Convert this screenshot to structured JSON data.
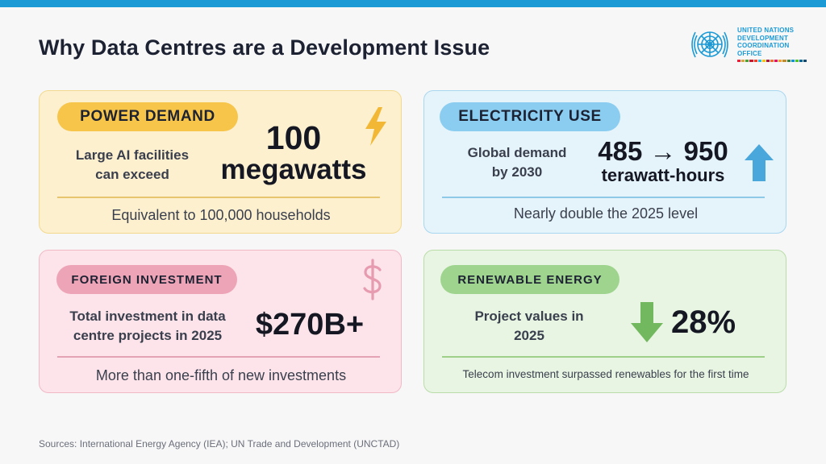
{
  "title": "Why Data Centres are a Development Issue",
  "logo": {
    "lines": [
      "UNITED NATIONS",
      "DEVELOPMENT",
      "COORDINATION",
      "OFFICE"
    ],
    "icon": "un-emblem-icon",
    "color": "#1b9ad6"
  },
  "cards": {
    "power": {
      "label": "POWER DEMAND",
      "description_line1": "Large AI facilities",
      "description_line2": "can exceed",
      "value_line1": "100",
      "value_line2": "megawatts",
      "footer": "Equivalent to 100,000 households",
      "icon": "lightning-icon",
      "accent": "#f6c54a"
    },
    "electricity": {
      "label": "ELECTRICITY USE",
      "description_line1": "Global demand",
      "description_line2": "by 2030",
      "value": "485 → 950",
      "unit": "terawatt-hours",
      "footer": "Nearly double the 2025 level",
      "icon": "arrow-up-icon",
      "accent": "#8acdf0"
    },
    "investment": {
      "label": "FOREIGN INVESTMENT",
      "description_line1": "Total investment in data",
      "description_line2": "centre projects in 2025",
      "value": "$270B+",
      "footer": "More than one-fifth of new investments",
      "icon": "dollar-icon",
      "accent": "#eda4b6"
    },
    "renewable": {
      "label": "RENEWABLE ENERGY",
      "description_line1": "Project values in",
      "description_line2": "2025",
      "value": "28%",
      "footer": "Telecom investment surpassed renewables for the first time",
      "icon": "arrow-down-icon",
      "accent": "#9fd48e"
    }
  },
  "sources": "Sources: International Energy Agency (IEA); UN Trade and Development (UNCTAD)"
}
